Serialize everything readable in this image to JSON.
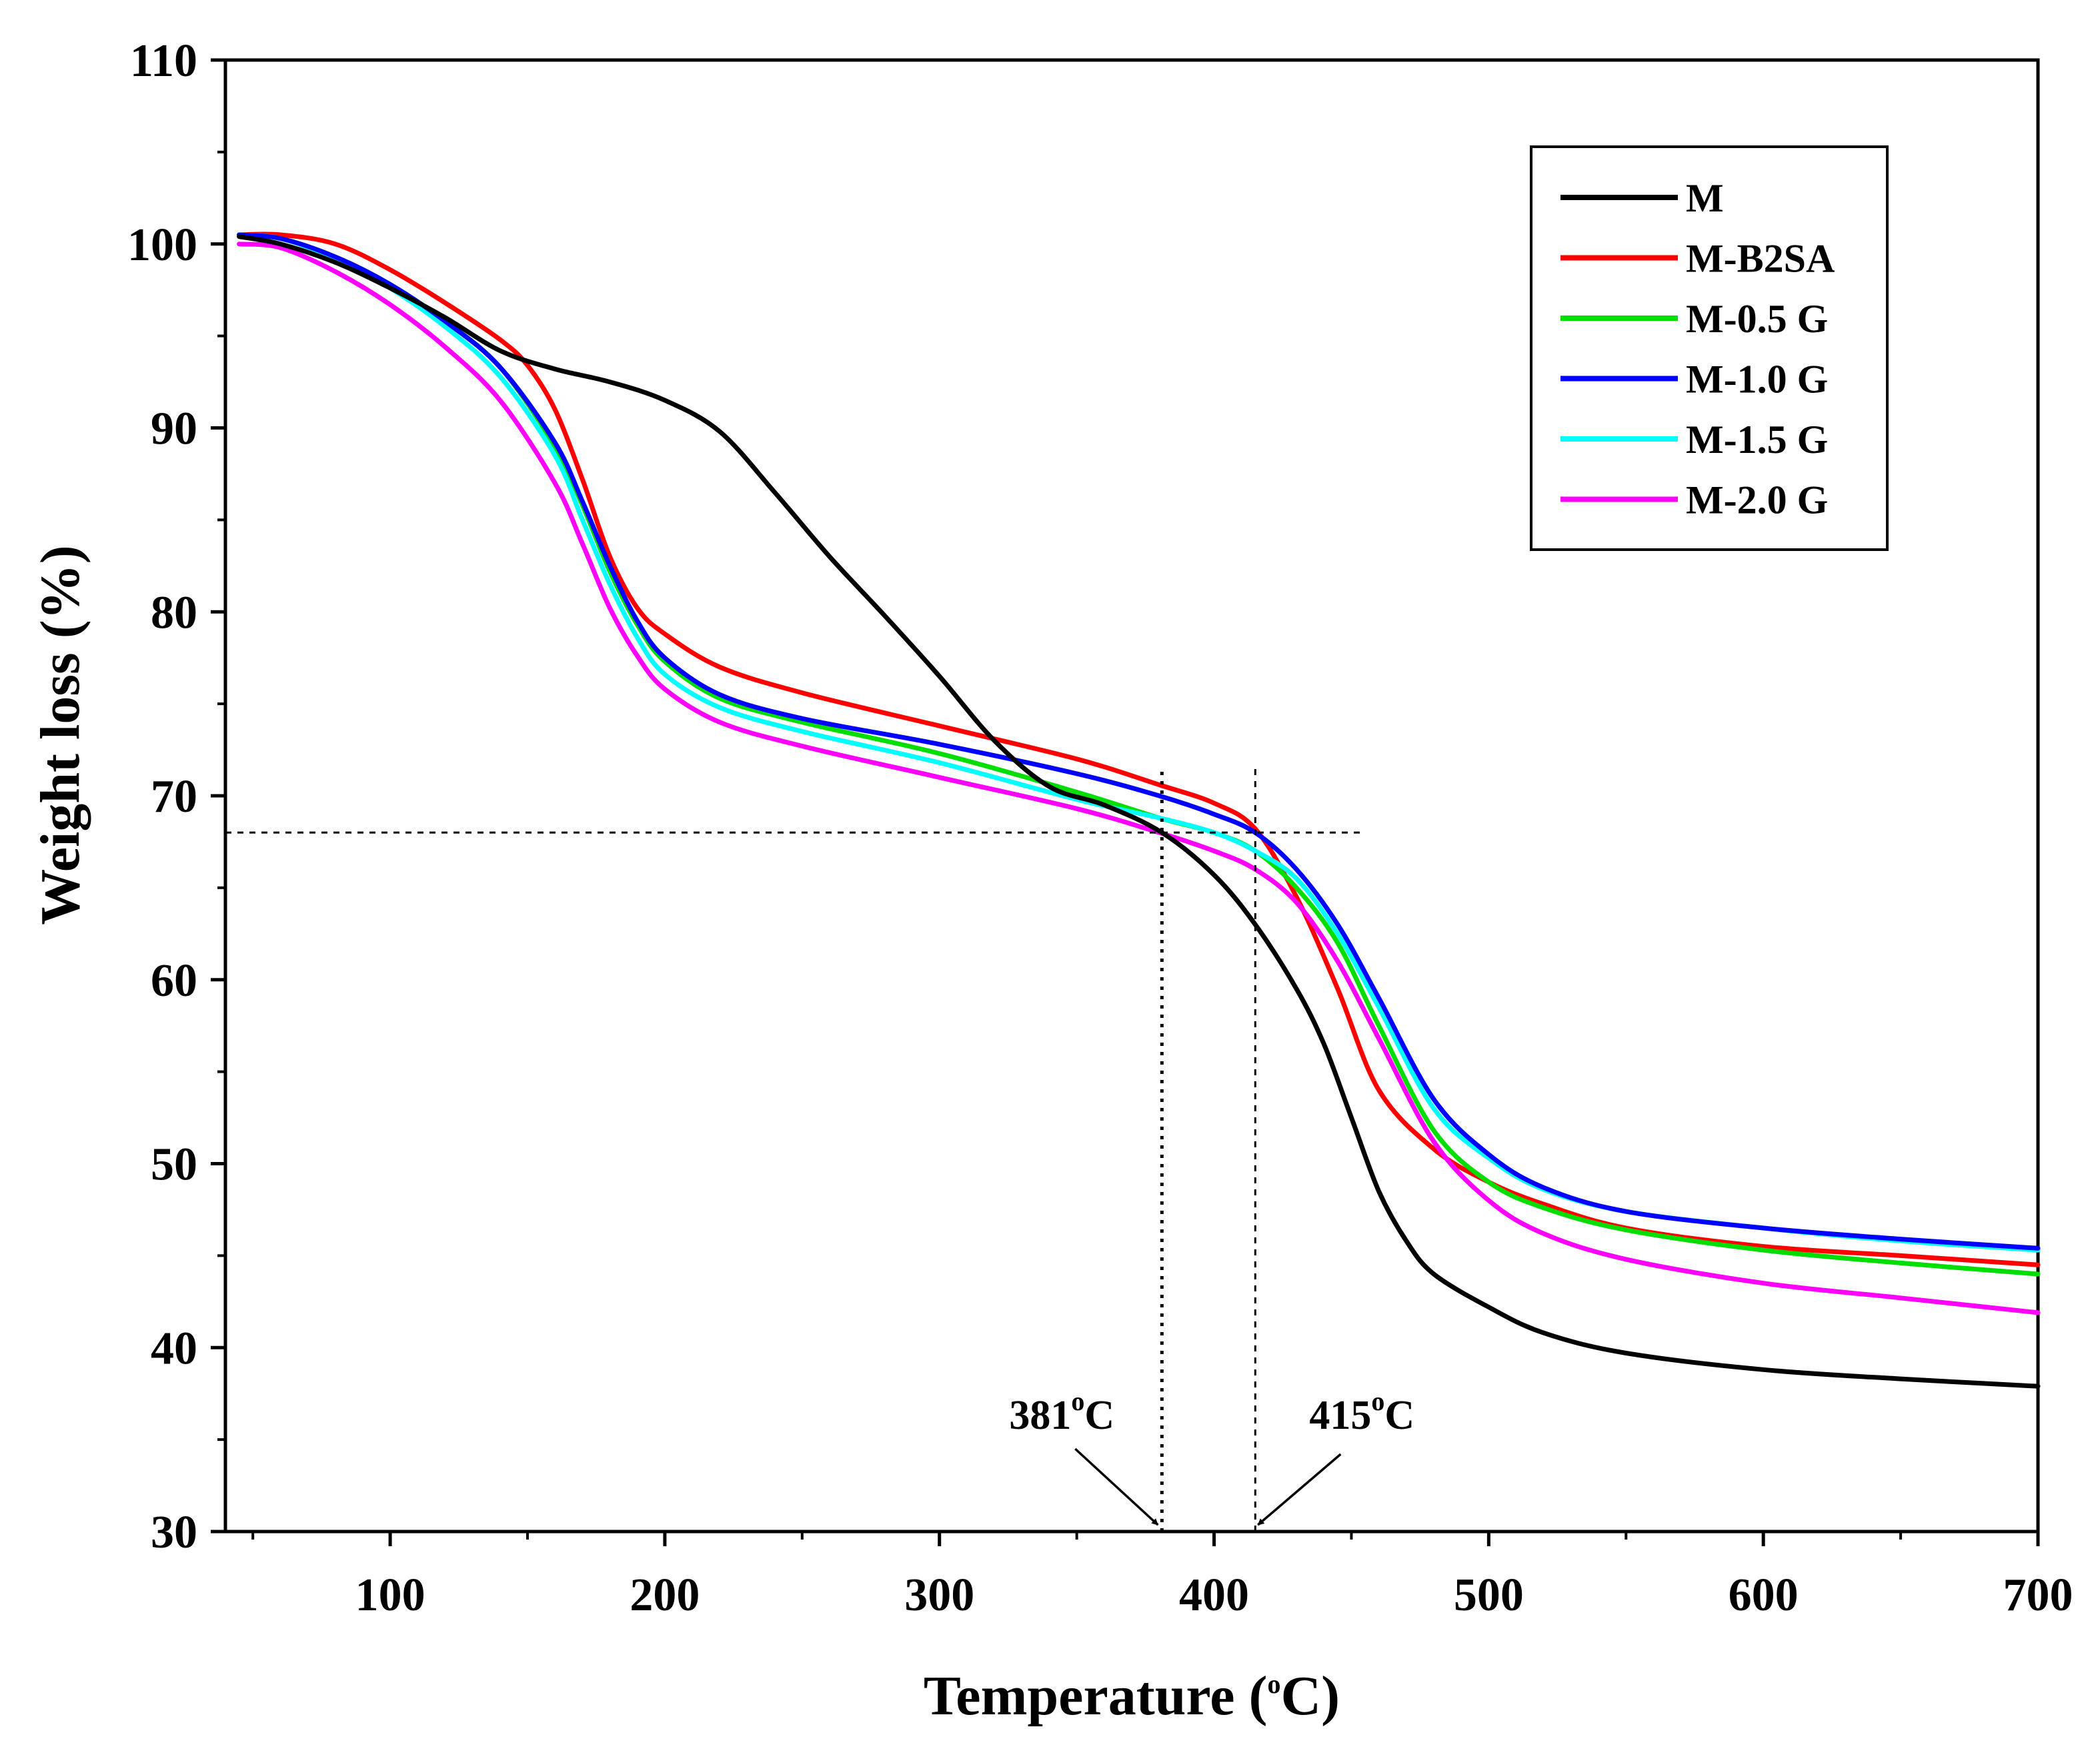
{
  "chart_data": {
    "type": "line",
    "title": "",
    "xlabel_parts": [
      "Temperature (",
      "o",
      "C)"
    ],
    "ylabel": "Weight loss (%)",
    "xlim": [
      40,
      700
    ],
    "ylim": [
      30,
      110
    ],
    "x_ticks": [
      100,
      200,
      300,
      400,
      500,
      600,
      700
    ],
    "y_ticks": [
      30,
      40,
      50,
      60,
      70,
      80,
      90,
      100,
      110
    ],
    "legend_position": "top-right",
    "series": [
      {
        "name": "M",
        "color": "#000000",
        "x": [
          45,
          60,
          80,
          100,
          120,
          140,
          160,
          180,
          200,
          220,
          240,
          260,
          280,
          300,
          320,
          340,
          360,
          381,
          400,
          415,
          430,
          440,
          450,
          460,
          470,
          480,
          500,
          520,
          550,
          600,
          650,
          700
        ],
        "y": [
          100.4,
          100.0,
          99.0,
          97.6,
          96.0,
          94.2,
          93.2,
          92.5,
          91.5,
          89.8,
          86.5,
          83.0,
          79.8,
          76.5,
          73.0,
          70.5,
          69.5,
          68.0,
          65.7,
          63.0,
          59.5,
          56.5,
          52.5,
          48.5,
          45.8,
          44.0,
          42.2,
          40.8,
          39.7,
          38.8,
          38.3,
          37.9
        ]
      },
      {
        "name": "M-B2SA",
        "color": "#ff0000",
        "x": [
          45,
          60,
          80,
          100,
          120,
          140,
          150,
          160,
          170,
          180,
          190,
          200,
          220,
          250,
          300,
          350,
          380,
          400,
          415,
          430,
          445,
          460,
          480,
          500,
          520,
          550,
          600,
          650,
          700
        ],
        "y": [
          100.5,
          100.5,
          100.0,
          98.6,
          96.8,
          94.8,
          93.4,
          91.0,
          87.2,
          83.0,
          80.2,
          78.8,
          77.0,
          75.6,
          73.8,
          72.0,
          70.6,
          69.6,
          68.2,
          64.5,
          59.5,
          54.0,
          50.8,
          49.0,
          47.8,
          46.5,
          45.5,
          45.0,
          44.5
        ]
      },
      {
        "name": "M-0.5 G",
        "color": "#00dd00",
        "x": [
          45,
          60,
          80,
          100,
          120,
          140,
          160,
          170,
          180,
          190,
          200,
          220,
          250,
          300,
          350,
          380,
          400,
          415,
          430,
          445,
          460,
          480,
          500,
          520,
          550,
          600,
          650,
          700
        ],
        "y": [
          100.5,
          100.3,
          99.3,
          97.8,
          95.8,
          93.3,
          89.0,
          85.8,
          82.2,
          79.3,
          77.3,
          75.3,
          74.0,
          72.3,
          70.2,
          68.8,
          68.0,
          67.0,
          65.0,
          62.0,
          57.5,
          51.8,
          49.0,
          47.6,
          46.4,
          45.3,
          44.6,
          44.0
        ]
      },
      {
        "name": "M-1.0 G",
        "color": "#0000ff",
        "x": [
          45,
          60,
          80,
          100,
          120,
          140,
          160,
          170,
          180,
          190,
          200,
          220,
          250,
          300,
          350,
          380,
          400,
          415,
          430,
          445,
          460,
          480,
          500,
          520,
          550,
          600,
          650,
          700
        ],
        "y": [
          100.5,
          100.3,
          99.3,
          97.8,
          95.8,
          93.3,
          89.2,
          86.0,
          82.5,
          79.5,
          77.5,
          75.5,
          74.2,
          72.8,
          71.2,
          70.0,
          69.0,
          68.0,
          66.0,
          63.0,
          59.0,
          53.5,
          50.5,
          48.7,
          47.4,
          46.5,
          45.9,
          45.4
        ]
      },
      {
        "name": "M-1.5 G",
        "color": "#00ffff",
        "x": [
          45,
          60,
          80,
          100,
          120,
          140,
          160,
          170,
          180,
          190,
          200,
          220,
          250,
          300,
          350,
          380,
          400,
          415,
          430,
          445,
          460,
          480,
          500,
          520,
          550,
          600,
          650,
          700
        ],
        "y": [
          100.5,
          100.3,
          99.2,
          97.6,
          95.5,
          92.8,
          88.5,
          85.0,
          81.5,
          78.6,
          76.6,
          74.8,
          73.5,
          71.8,
          69.8,
          68.8,
          68.0,
          67.0,
          65.5,
          62.5,
          58.5,
          53.0,
          50.3,
          48.6,
          47.4,
          46.5,
          45.8,
          45.3
        ]
      },
      {
        "name": "M-2.0 G",
        "color": "#ff00ff",
        "x": [
          45,
          60,
          80,
          100,
          120,
          140,
          160,
          170,
          180,
          190,
          200,
          220,
          250,
          300,
          350,
          380,
          400,
          415,
          430,
          445,
          460,
          480,
          500,
          520,
          550,
          600,
          650,
          700
        ],
        "y": [
          100.0,
          99.8,
          98.5,
          96.7,
          94.4,
          91.5,
          87.0,
          83.7,
          80.2,
          77.6,
          75.8,
          74.0,
          72.7,
          71.0,
          69.3,
          68.0,
          67.0,
          66.0,
          64.2,
          61.0,
          56.8,
          51.2,
          48.0,
          46.2,
          44.8,
          43.5,
          42.7,
          41.9
        ]
      }
    ],
    "reference_lines": {
      "horizontal_y": 68,
      "horizontal_x_range": [
        40,
        455
      ],
      "vertical_dotted_x": 381,
      "vertical_dashed_x": 415,
      "vertical_y_range": [
        30,
        71.5
      ]
    },
    "annotations": [
      {
        "number": "381",
        "unit": "C",
        "degree": "o",
        "x": 381
      },
      {
        "number": "415",
        "unit": "C",
        "degree": "o",
        "x": 415
      }
    ]
  }
}
